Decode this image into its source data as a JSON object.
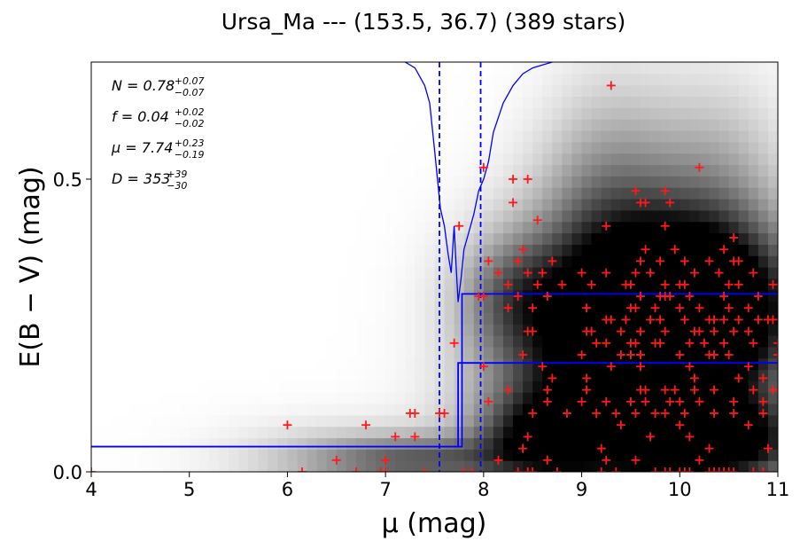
{
  "chart_data": {
    "type": "scatter",
    "title": "Ursa_Ma --- (153.5, 36.7) (389 stars)",
    "xlabel": "μ (mag)",
    "ylabel": "E(B − V) (mag)",
    "xlim": [
      4,
      11
    ],
    "ylim": [
      0,
      0.7
    ],
    "xticks": [
      4,
      5,
      6,
      7,
      8,
      9,
      10,
      11
    ],
    "yticks": [
      0.0,
      0.5
    ],
    "xtick_labels": [
      "4",
      "5",
      "6",
      "7",
      "8",
      "9",
      "10",
      "11"
    ],
    "ytick_labels": [
      "0.0",
      "0.5"
    ],
    "grid": false,
    "colors": {
      "stars": "#ff1a1a",
      "model": "#0000ff",
      "background": "grayscale density"
    },
    "annotations": {
      "N": {
        "symbol": "N",
        "value": "0.78",
        "plus": "+0.07",
        "minus": "−0.07"
      },
      "f": {
        "symbol": "f",
        "value": "0.04",
        "plus": "+0.02",
        "minus": "−0.02"
      },
      "mu": {
        "symbol": "μ",
        "value": "7.74",
        "plus": "+0.23",
        "minus": "−0.19"
      },
      "D": {
        "symbol": "D",
        "value": "353",
        "plus": "+39",
        "minus": "−30"
      }
    },
    "vlines_dashed": [
      7.55,
      7.97
    ],
    "step_model": {
      "lower": {
        "x": [
          4,
          7.74,
          7.74,
          11
        ],
        "y": [
          0.043,
          0.043,
          0.186,
          0.186
        ]
      },
      "upper": {
        "x": [
          4,
          7.78,
          7.78,
          11
        ],
        "y": [
          0.043,
          0.043,
          0.304,
          0.304
        ]
      }
    },
    "likelihood_curve": {
      "x": [
        7.2,
        7.3,
        7.4,
        7.45,
        7.5,
        7.53,
        7.56,
        7.6,
        7.64,
        7.67,
        7.7,
        7.72,
        7.74,
        7.77,
        7.8,
        7.85,
        7.9,
        7.95,
        8.0,
        8.05,
        8.1,
        8.2,
        8.3,
        8.4,
        8.5,
        8.6,
        8.7
      ],
      "y": [
        0.7,
        0.69,
        0.66,
        0.63,
        0.55,
        0.5,
        0.45,
        0.42,
        0.37,
        0.34,
        0.42,
        0.35,
        0.29,
        0.33,
        0.38,
        0.41,
        0.44,
        0.48,
        0.5,
        0.53,
        0.58,
        0.63,
        0.66,
        0.68,
        0.69,
        0.695,
        0.7
      ]
    },
    "density_blobs": [
      {
        "x": 9.2,
        "y": 0.25,
        "sx": 0.8,
        "sy": 0.14,
        "w": 0.85
      },
      {
        "x": 10.0,
        "y": 0.25,
        "sx": 0.6,
        "sy": 0.11,
        "w": 0.95
      },
      {
        "x": 10.5,
        "y": 0.28,
        "sx": 0.7,
        "sy": 0.1,
        "w": 0.7
      },
      {
        "x": 9.0,
        "y": 0.08,
        "sx": 0.8,
        "sy": 0.1,
        "w": 0.5
      },
      {
        "x": 10.0,
        "y": 0.05,
        "sx": 0.7,
        "sy": 0.05,
        "w": 0.65
      },
      {
        "x": 10.7,
        "y": 0.05,
        "sx": 0.5,
        "sy": 0.06,
        "w": 0.55
      },
      {
        "x": 7.2,
        "y": 0.02,
        "sx": 0.8,
        "sy": 0.03,
        "w": 0.7
      },
      {
        "x": 8.3,
        "y": 0.3,
        "sx": 0.4,
        "sy": 0.07,
        "w": 0.45
      },
      {
        "x": 8.5,
        "y": 0.06,
        "sx": 0.4,
        "sy": 0.05,
        "w": 0.55
      },
      {
        "x": 9.3,
        "y": 0.47,
        "sx": 0.5,
        "sy": 0.14,
        "w": 0.35
      },
      {
        "x": 10.4,
        "y": 0.48,
        "sx": 0.5,
        "sy": 0.13,
        "w": 0.3
      },
      {
        "x": 6.3,
        "y": 0.02,
        "sx": 0.9,
        "sy": 0.05,
        "w": 0.3
      }
    ],
    "stars": [
      [
        9.3,
        0.66
      ],
      [
        10.2,
        0.52
      ],
      [
        8.0,
        0.52
      ],
      [
        8.3,
        0.5
      ],
      [
        8.45,
        0.5
      ],
      [
        9.55,
        0.48
      ],
      [
        9.85,
        0.48
      ],
      [
        8.3,
        0.46
      ],
      [
        9.6,
        0.46
      ],
      [
        9.65,
        0.46
      ],
      [
        9.9,
        0.46
      ],
      [
        8.55,
        0.43
      ],
      [
        9.25,
        0.42
      ],
      [
        9.85,
        0.42
      ],
      [
        7.75,
        0.42
      ],
      [
        10.55,
        0.4
      ],
      [
        8.4,
        0.38
      ],
      [
        9.65,
        0.38
      ],
      [
        9.95,
        0.38
      ],
      [
        10.45,
        0.38
      ],
      [
        8.05,
        0.36
      ],
      [
        8.35,
        0.36
      ],
      [
        8.7,
        0.36
      ],
      [
        9.6,
        0.36
      ],
      [
        9.8,
        0.36
      ],
      [
        10.05,
        0.36
      ],
      [
        10.3,
        0.36
      ],
      [
        10.55,
        0.36
      ],
      [
        10.6,
        0.36
      ],
      [
        8.15,
        0.34
      ],
      [
        8.45,
        0.34
      ],
      [
        8.6,
        0.34
      ],
      [
        9.0,
        0.34
      ],
      [
        9.25,
        0.34
      ],
      [
        9.55,
        0.34
      ],
      [
        9.7,
        0.34
      ],
      [
        10.15,
        0.34
      ],
      [
        10.4,
        0.34
      ],
      [
        10.75,
        0.34
      ],
      [
        8.25,
        0.32
      ],
      [
        8.55,
        0.32
      ],
      [
        8.8,
        0.32
      ],
      [
        9.1,
        0.32
      ],
      [
        9.45,
        0.32
      ],
      [
        9.5,
        0.32
      ],
      [
        9.85,
        0.32
      ],
      [
        10.0,
        0.32
      ],
      [
        10.05,
        0.32
      ],
      [
        10.5,
        0.32
      ],
      [
        10.6,
        0.32
      ],
      [
        10.95,
        0.32
      ],
      [
        7.95,
        0.3
      ],
      [
        8.0,
        0.3
      ],
      [
        8.35,
        0.3
      ],
      [
        8.65,
        0.3
      ],
      [
        9.6,
        0.3
      ],
      [
        9.8,
        0.3
      ],
      [
        9.85,
        0.3
      ],
      [
        9.9,
        0.3
      ],
      [
        10.1,
        0.3
      ],
      [
        10.45,
        0.3
      ],
      [
        10.8,
        0.3
      ],
      [
        8.25,
        0.28
      ],
      [
        8.5,
        0.28
      ],
      [
        9.05,
        0.28
      ],
      [
        9.5,
        0.28
      ],
      [
        9.55,
        0.28
      ],
      [
        9.75,
        0.28
      ],
      [
        10.0,
        0.28
      ],
      [
        10.2,
        0.28
      ],
      [
        10.5,
        0.28
      ],
      [
        10.7,
        0.28
      ],
      [
        9.3,
        0.26
      ],
      [
        9.25,
        0.26
      ],
      [
        9.45,
        0.26
      ],
      [
        9.7,
        0.26
      ],
      [
        9.8,
        0.26
      ],
      [
        10.05,
        0.26
      ],
      [
        10.3,
        0.26
      ],
      [
        10.35,
        0.26
      ],
      [
        10.45,
        0.26
      ],
      [
        10.6,
        0.26
      ],
      [
        10.8,
        0.26
      ],
      [
        10.9,
        0.26
      ],
      [
        10.95,
        0.26
      ],
      [
        8.45,
        0.24
      ],
      [
        8.5,
        0.24
      ],
      [
        9.05,
        0.24
      ],
      [
        9.1,
        0.24
      ],
      [
        9.4,
        0.24
      ],
      [
        9.6,
        0.24
      ],
      [
        9.85,
        0.24
      ],
      [
        10.15,
        0.24
      ],
      [
        10.2,
        0.24
      ],
      [
        10.35,
        0.24
      ],
      [
        10.55,
        0.24
      ],
      [
        10.7,
        0.24
      ],
      [
        7.7,
        0.22
      ],
      [
        9.15,
        0.22
      ],
      [
        9.25,
        0.22
      ],
      [
        9.5,
        0.22
      ],
      [
        9.55,
        0.22
      ],
      [
        9.75,
        0.22
      ],
      [
        9.8,
        0.22
      ],
      [
        10.1,
        0.22
      ],
      [
        10.25,
        0.22
      ],
      [
        10.45,
        0.22
      ],
      [
        10.75,
        0.22
      ],
      [
        11.0,
        0.22
      ],
      [
        8.4,
        0.2
      ],
      [
        9.0,
        0.2
      ],
      [
        9.4,
        0.2
      ],
      [
        9.5,
        0.2
      ],
      [
        9.6,
        0.2
      ],
      [
        10.0,
        0.2
      ],
      [
        10.3,
        0.2
      ],
      [
        10.35,
        0.2
      ],
      [
        10.5,
        0.2
      ],
      [
        11.0,
        0.2
      ],
      [
        8.0,
        0.18
      ],
      [
        8.6,
        0.18
      ],
      [
        9.3,
        0.18
      ],
      [
        9.6,
        0.18
      ],
      [
        10.1,
        0.18
      ],
      [
        10.7,
        0.18
      ],
      [
        8.7,
        0.16
      ],
      [
        9.05,
        0.16
      ],
      [
        10.15,
        0.16
      ],
      [
        10.6,
        0.16
      ],
      [
        10.85,
        0.16
      ],
      [
        8.25,
        0.14
      ],
      [
        8.65,
        0.14
      ],
      [
        9.05,
        0.14
      ],
      [
        9.6,
        0.14
      ],
      [
        9.65,
        0.14
      ],
      [
        9.85,
        0.14
      ],
      [
        9.95,
        0.14
      ],
      [
        10.15,
        0.14
      ],
      [
        10.35,
        0.14
      ],
      [
        10.75,
        0.14
      ],
      [
        10.95,
        0.14
      ],
      [
        11.0,
        0.14
      ],
      [
        8.05,
        0.12
      ],
      [
        8.65,
        0.12
      ],
      [
        9.0,
        0.12
      ],
      [
        9.25,
        0.12
      ],
      [
        9.5,
        0.12
      ],
      [
        9.65,
        0.12
      ],
      [
        9.9,
        0.12
      ],
      [
        10.0,
        0.12
      ],
      [
        10.2,
        0.12
      ],
      [
        10.55,
        0.12
      ],
      [
        10.85,
        0.12
      ],
      [
        7.25,
        0.1
      ],
      [
        7.3,
        0.1
      ],
      [
        7.55,
        0.1
      ],
      [
        7.6,
        0.1
      ],
      [
        8.5,
        0.1
      ],
      [
        8.85,
        0.1
      ],
      [
        9.15,
        0.1
      ],
      [
        9.35,
        0.1
      ],
      [
        9.55,
        0.1
      ],
      [
        9.75,
        0.1
      ],
      [
        9.85,
        0.1
      ],
      [
        10.05,
        0.1
      ],
      [
        10.35,
        0.1
      ],
      [
        10.55,
        0.1
      ],
      [
        10.85,
        0.1
      ],
      [
        6.0,
        0.08
      ],
      [
        6.8,
        0.08
      ],
      [
        9.4,
        0.08
      ],
      [
        10.0,
        0.08
      ],
      [
        10.7,
        0.08
      ],
      [
        7.1,
        0.06
      ],
      [
        7.3,
        0.06
      ],
      [
        8.45,
        0.06
      ],
      [
        9.7,
        0.06
      ],
      [
        10.1,
        0.06
      ],
      [
        8.4,
        0.04
      ],
      [
        9.2,
        0.04
      ],
      [
        10.3,
        0.04
      ],
      [
        10.9,
        0.04
      ],
      [
        6.5,
        0.02
      ],
      [
        7.0,
        0.02
      ],
      [
        8.15,
        0.02
      ],
      [
        8.65,
        0.02
      ],
      [
        9.25,
        0.02
      ],
      [
        9.55,
        0.02
      ],
      [
        10.2,
        0.02
      ],
      [
        6.15,
        0.0
      ],
      [
        6.7,
        0.0
      ],
      [
        6.95,
        0.0
      ],
      [
        7.0,
        0.0
      ],
      [
        7.4,
        0.0
      ],
      [
        7.8,
        0.0
      ],
      [
        7.88,
        0.0
      ],
      [
        8.35,
        0.0
      ],
      [
        8.45,
        0.0
      ],
      [
        8.5,
        0.0
      ],
      [
        8.75,
        0.0
      ],
      [
        9.2,
        0.0
      ],
      [
        9.35,
        0.0
      ],
      [
        9.75,
        0.0
      ],
      [
        9.85,
        0.0
      ],
      [
        9.9,
        0.0
      ],
      [
        10.0,
        0.0
      ],
      [
        10.05,
        0.0
      ],
      [
        10.1,
        0.0
      ],
      [
        10.3,
        0.0
      ],
      [
        10.35,
        0.0
      ],
      [
        10.4,
        0.0
      ],
      [
        10.45,
        0.0
      ],
      [
        10.5,
        0.0
      ],
      [
        10.55,
        0.0
      ],
      [
        10.75,
        0.0
      ],
      [
        10.85,
        0.0
      ],
      [
        4.0,
        0.0
      ]
    ]
  }
}
